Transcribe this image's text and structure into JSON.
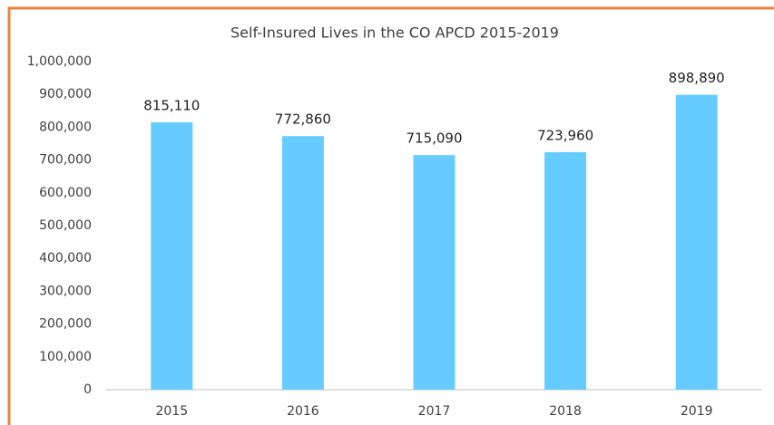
{
  "chart_data": {
    "type": "bar",
    "title": "Self-Insured Lives in the CO APCD 2015-2019",
    "categories": [
      "2015",
      "2016",
      "2017",
      "2018",
      "2019"
    ],
    "values": [
      815110,
      772860,
      715090,
      723960,
      898890
    ],
    "value_labels": [
      "815,110",
      "772,860",
      "715,090",
      "723,960",
      "898,890"
    ],
    "color": "#66ccff",
    "ylim": [
      0,
      1000000
    ],
    "yticks": [
      0,
      {
        "value": 100000,
        "label": "100,000"
      },
      {
        "value": 200000,
        "label": "200,000"
      },
      {
        "value": 300000,
        "label": "300,000"
      },
      {
        "value": 400000,
        "label": "400,000"
      },
      {
        "value": 500000,
        "label": "500,000"
      },
      {
        "value": 600000,
        "label": "600,000"
      },
      {
        "value": 700000,
        "label": "700,000"
      },
      {
        "value": 800000,
        "label": "800,000"
      },
      {
        "value": 900000,
        "label": "900,000"
      },
      {
        "value": 1000000,
        "label": "1,000,000"
      }
    ],
    "grid": false
  }
}
